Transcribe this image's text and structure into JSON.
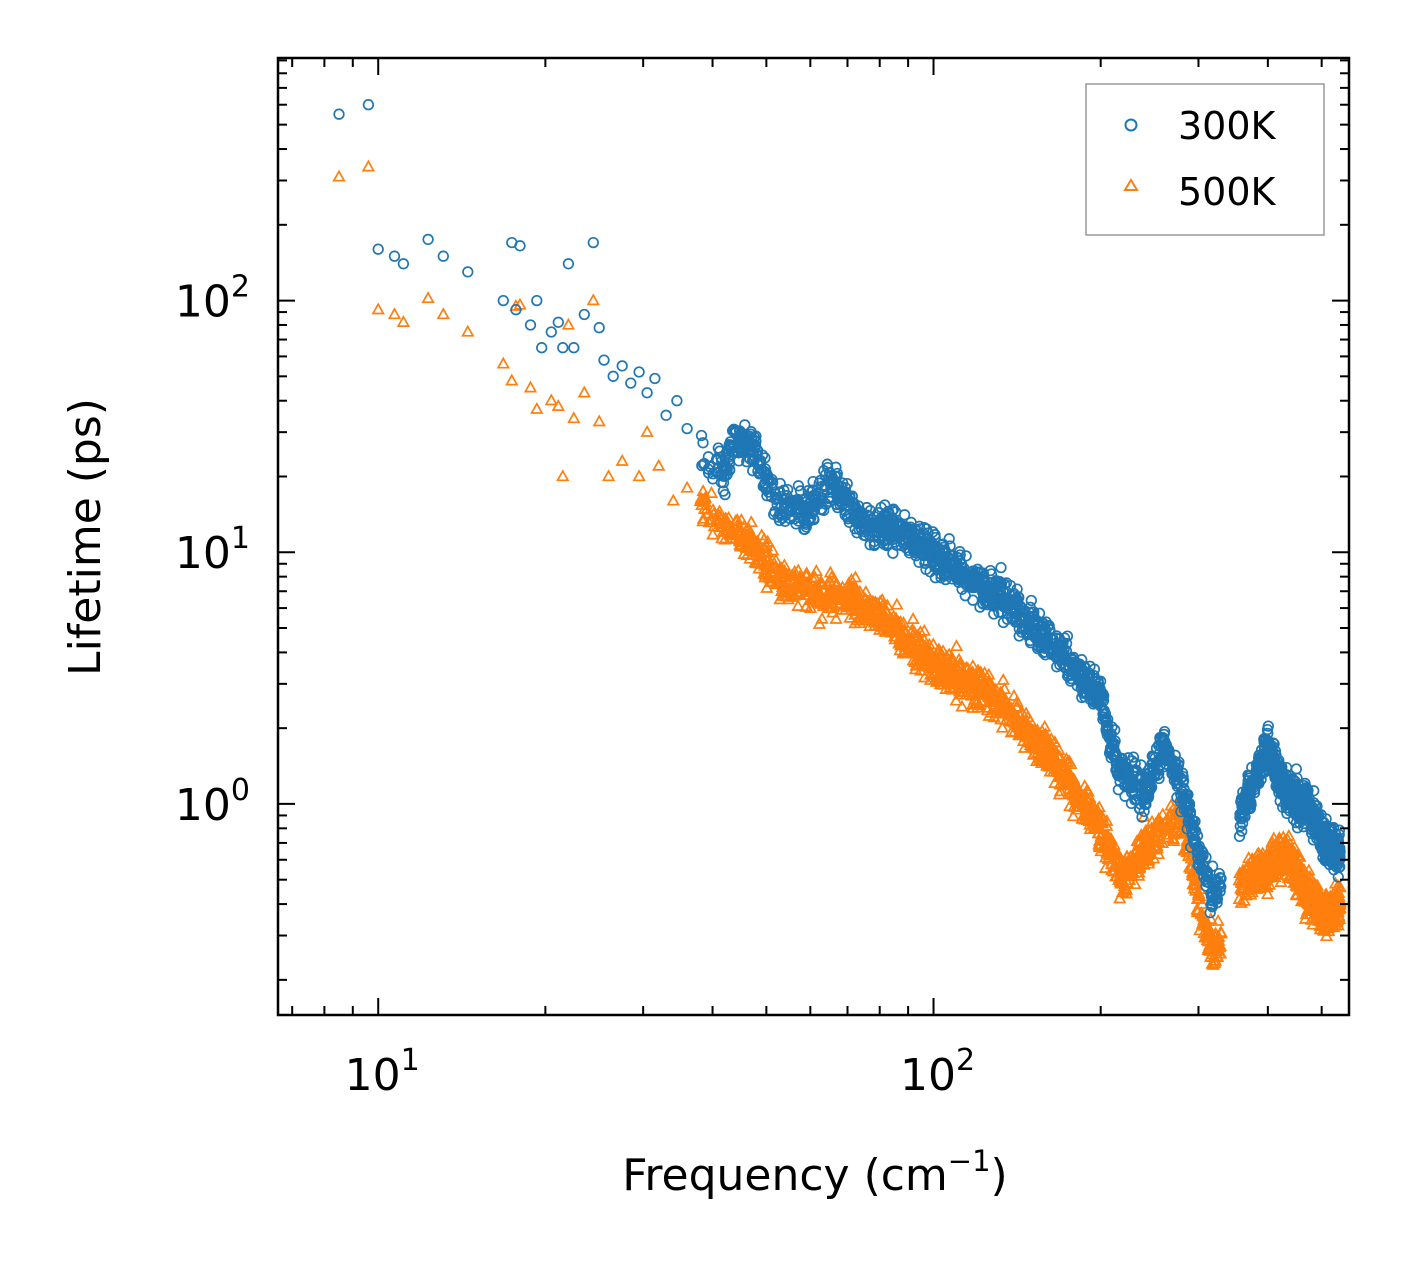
{
  "chart_data": {
    "type": "scatter",
    "title": "",
    "xlabel": "Frequency (cm",
    "xlabel_sup": "−1",
    "xlabel_end": ")",
    "ylabel": "Lifetime (ps)",
    "xscale": "log",
    "yscale": "log",
    "xlim": [
      6.6,
      560
    ],
    "ylim": [
      0.145,
      920
    ],
    "x_ticks": [
      {
        "value": 10,
        "base": "10",
        "exp": "1"
      },
      {
        "value": 100,
        "base": "10",
        "exp": "2"
      }
    ],
    "y_ticks": [
      {
        "value": 1,
        "base": "10",
        "exp": "0"
      },
      {
        "value": 10,
        "base": "10",
        "exp": "1"
      },
      {
        "value": 100,
        "base": "10",
        "exp": "2"
      }
    ],
    "legend": {
      "position": "top-right"
    },
    "series": [
      {
        "name": "300K",
        "marker": "circle",
        "color": "#1f77b4",
        "sample_points": [
          [
            8.5,
            550
          ],
          [
            9.6,
            600
          ],
          [
            10,
            160
          ],
          [
            10.7,
            150
          ],
          [
            11.1,
            140
          ],
          [
            12.3,
            175
          ],
          [
            13.1,
            150
          ],
          [
            14.5,
            130
          ],
          [
            16.8,
            100
          ],
          [
            17.4,
            170
          ],
          [
            17.7,
            92
          ],
          [
            18,
            165
          ],
          [
            18.8,
            80
          ],
          [
            19.3,
            100
          ],
          [
            19.7,
            65
          ],
          [
            20.5,
            75
          ],
          [
            21.1,
            82
          ],
          [
            21.5,
            65
          ],
          [
            22,
            140
          ],
          [
            22.5,
            65
          ],
          [
            23.5,
            88
          ],
          [
            24.4,
            170
          ],
          [
            25,
            78
          ],
          [
            25.5,
            58
          ],
          [
            26.5,
            50
          ],
          [
            27.5,
            55
          ],
          [
            28.5,
            47
          ],
          [
            29.5,
            52
          ],
          [
            30.5,
            43
          ],
          [
            31.5,
            49
          ],
          [
            33,
            35
          ],
          [
            34.5,
            40
          ],
          [
            36,
            31
          ],
          [
            38,
            25
          ],
          [
            40,
            23
          ],
          [
            42,
            20
          ],
          [
            44,
            28
          ],
          [
            47,
            27
          ],
          [
            52,
            16
          ],
          [
            58,
            14
          ],
          [
            66,
            19
          ],
          [
            75,
            13
          ],
          [
            88,
            12
          ],
          [
            100,
            10
          ],
          [
            120,
            7.5
          ],
          [
            140,
            6
          ],
          [
            160,
            4.5
          ],
          [
            180,
            3.5
          ],
          [
            200,
            2.6
          ],
          [
            215,
            1.4
          ],
          [
            240,
            1.1
          ],
          [
            260,
            1.7
          ],
          [
            280,
            1.2
          ],
          [
            300,
            0.65
          ],
          [
            320,
            0.42
          ],
          [
            360,
            0.95
          ],
          [
            400,
            1.7
          ],
          [
            430,
            1.1
          ],
          [
            470,
            1.0
          ],
          [
            510,
            0.7
          ],
          [
            530,
            0.65
          ]
        ]
      },
      {
        "name": "500K",
        "marker": "triangle",
        "color": "#ff7f0e",
        "sample_points": [
          [
            8.5,
            310
          ],
          [
            9.6,
            340
          ],
          [
            10,
            92
          ],
          [
            10.7,
            88
          ],
          [
            11.1,
            82
          ],
          [
            12.3,
            102
          ],
          [
            13.1,
            88
          ],
          [
            14.5,
            75
          ],
          [
            16.8,
            56
          ],
          [
            17.4,
            48
          ],
          [
            17.7,
            95
          ],
          [
            18,
            96
          ],
          [
            18.8,
            45
          ],
          [
            19.3,
            37
          ],
          [
            20.5,
            40
          ],
          [
            21.1,
            38
          ],
          [
            21.5,
            20
          ],
          [
            22,
            80
          ],
          [
            22.5,
            34
          ],
          [
            23.5,
            43
          ],
          [
            24.4,
            100
          ],
          [
            25,
            33
          ],
          [
            26,
            20
          ],
          [
            27.5,
            23
          ],
          [
            29.5,
            20
          ],
          [
            30.5,
            30
          ],
          [
            32,
            22
          ],
          [
            34,
            16
          ],
          [
            36,
            18
          ],
          [
            40,
            14
          ],
          [
            44,
            12
          ],
          [
            48,
            10
          ],
          [
            52,
            8
          ],
          [
            60,
            7
          ],
          [
            70,
            6.5
          ],
          [
            80,
            5.5
          ],
          [
            90,
            4.5
          ],
          [
            100,
            3.5
          ],
          [
            120,
            3.0
          ],
          [
            140,
            2.2
          ],
          [
            160,
            1.6
          ],
          [
            180,
            1.1
          ],
          [
            200,
            0.8
          ],
          [
            220,
            0.5
          ],
          [
            250,
            0.75
          ],
          [
            280,
            0.9
          ],
          [
            300,
            0.4
          ],
          [
            320,
            0.25
          ],
          [
            360,
            0.5
          ],
          [
            400,
            0.55
          ],
          [
            430,
            0.65
          ],
          [
            470,
            0.45
          ],
          [
            510,
            0.35
          ],
          [
            530,
            0.4
          ]
        ]
      }
    ]
  }
}
